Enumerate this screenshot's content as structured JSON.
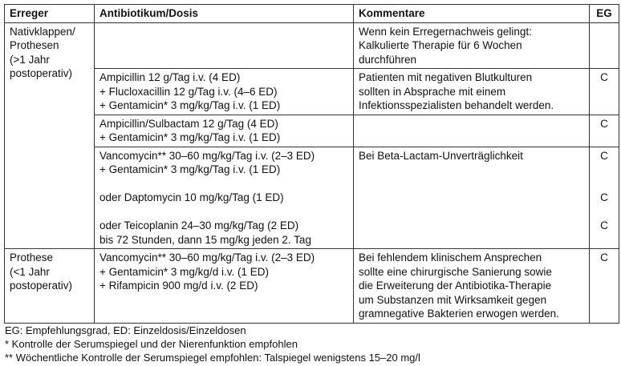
{
  "headers": [
    "Erreger",
    "Antibiotikum/Dosis",
    "Kommentare",
    "EG"
  ],
  "group1": {
    "erreger": [
      "Nativklappen/",
      "Prothesen",
      "(>1 Jahr",
      "postoperativ)"
    ],
    "rows": [
      {
        "dosis": [],
        "kommentar": [
          "Wenn kein Erregernachweis gelingt:",
          "Kalkulierte Therapie für 6 Wochen",
          "durchführen"
        ],
        "eg": []
      },
      {
        "dosis": [
          "Ampicillin 12 g/Tag i.v. (4 ED)",
          "+ Flucloxacillin 12 g/Tag i.v. (4–6 ED)",
          "+ Gentamicin* 3 mg/kg/Tag i.v. (1 ED)"
        ],
        "kommentar": [
          "Patienten mit negativen Blutkulturen",
          "sollten in Absprache mit einem",
          "Infektionsspezialisten behandelt werden."
        ],
        "eg": [
          "C"
        ]
      },
      {
        "dosis": [
          "Ampicillin/Sulbactam 12 g/Tag (4 ED)",
          "+ Gentamicin* 3 mg/kg/Tag i.v. (1 ED)"
        ],
        "kommentar": [],
        "eg": [
          "C"
        ]
      },
      {
        "dosis": [
          "Vancomycin** 30–60 mg/kg/Tag i.v. (2–3 ED)",
          "+ Gentamicin* 3 mg/kg/Tag i.v. (1 ED)",
          "",
          "oder Daptomycin 10 mg/kg/Tag (1 ED)",
          "",
          "oder Teicoplanin 24–30 mg/kg/Tag (2 ED)",
          "bis 72 Stunden, dann 15 mg/kg jeden 2. Tag"
        ],
        "kommentar": [
          "Bei Beta-Lactam-Unverträglichkeit"
        ],
        "eg": [
          "C",
          "",
          "",
          "C",
          "",
          "C"
        ]
      }
    ]
  },
  "group2": {
    "erreger": [
      "Prothese",
      "(<1 Jahr",
      "postoperativ)"
    ],
    "dosis": [
      "Vancomycin** 30–60 mg/kg/Tag i.v. (2–3 ED)",
      "+ Gentamicin* 3 mg/kg/d i.v. (1 ED)",
      "+ Rifampicin 900 mg/d i.v. (2 ED)"
    ],
    "kommentar": [
      "Bei fehlendem klinischem Ansprechen",
      "sollte eine chirurgische Sanierung sowie",
      "die Erweiterung der Antibiotika-Therapie",
      "um Substanzen mit Wirksamkeit gegen",
      "gramnegative Bakterien erwogen werden."
    ],
    "eg": [
      "C"
    ]
  },
  "footnotes": [
    "EG: Empfehlungsgrad, ED: Einzeldosis/Einzeldosen",
    "*  Kontrolle der Serumspiegel und der Nierenfunktion empfohlen",
    "** Wöchentliche Kontrolle der Serumspiegel empfohlen: Talspiegel wenigstens 15–20 mg/l"
  ]
}
